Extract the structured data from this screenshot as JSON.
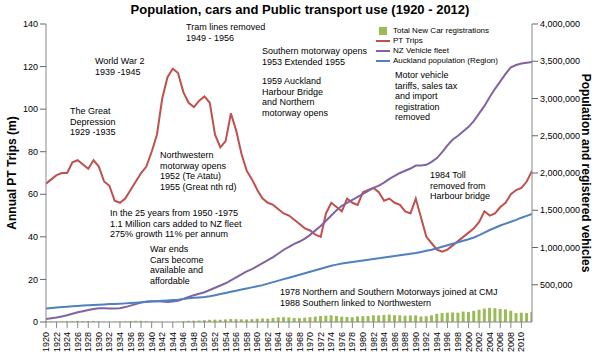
{
  "chart_data": {
    "type": "line",
    "title": "Population, cars and Public transport use (1920 - 2012)",
    "y_label": "Annual PT Trips (m)",
    "y2_label": "Population and registered vehicles",
    "x": [
      1920,
      1921,
      1922,
      1923,
      1924,
      1925,
      1926,
      1927,
      1928,
      1929,
      1930,
      1931,
      1932,
      1933,
      1934,
      1935,
      1936,
      1937,
      1938,
      1939,
      1940,
      1941,
      1942,
      1943,
      1944,
      1945,
      1946,
      1947,
      1948,
      1949,
      1950,
      1951,
      1952,
      1953,
      1954,
      1955,
      1956,
      1957,
      1958,
      1959,
      1960,
      1961,
      1962,
      1963,
      1964,
      1965,
      1966,
      1967,
      1968,
      1969,
      1970,
      1971,
      1972,
      1973,
      1974,
      1975,
      1976,
      1977,
      1978,
      1979,
      1980,
      1981,
      1982,
      1983,
      1984,
      1985,
      1986,
      1987,
      1988,
      1989,
      1990,
      1991,
      1992,
      1993,
      1994,
      1995,
      1996,
      1997,
      1998,
      1999,
      2000,
      2001,
      2002,
      2003,
      2004,
      2005,
      2006,
      2007,
      2008,
      2009,
      2010,
      2011,
      2012
    ],
    "xlim": [
      1920,
      2012
    ],
    "xticks": [
      1920,
      1922,
      1924,
      1926,
      1928,
      1930,
      1932,
      1934,
      1936,
      1938,
      1940,
      1942,
      1944,
      1946,
      1948,
      1950,
      1952,
      1954,
      1956,
      1958,
      1960,
      1962,
      1964,
      1966,
      1968,
      1970,
      1972,
      1974,
      1976,
      1978,
      1980,
      1982,
      1984,
      1986,
      1988,
      1990,
      1992,
      1994,
      1996,
      1998,
      2000,
      2002,
      2004,
      2006,
      2008,
      2010
    ],
    "ylim": [
      0,
      140
    ],
    "yticks": [
      0,
      20,
      40,
      60,
      80,
      100,
      120,
      140
    ],
    "y2lim": [
      0,
      4000000
    ],
    "y2ticks": [
      {
        "value": 500000,
        "label": "500,000"
      },
      {
        "value": 1000000,
        "label": "1,000,000"
      },
      {
        "value": 1500000,
        "label": "1,500,000"
      },
      {
        "value": 2000000,
        "label": "2,000,000"
      },
      {
        "value": 2500000,
        "label": "2,500,000"
      },
      {
        "value": 3000000,
        "label": "3,000,000"
      },
      {
        "value": 3500000,
        "label": "3,500,000"
      },
      {
        "value": 4000000,
        "label": "4,000,000"
      }
    ],
    "grid": false,
    "legend": "top right",
    "series": [
      {
        "name": "Total New Car registrations",
        "type": "bar",
        "color": "#9bbb59",
        "axis": "y2",
        "values": [
          10000,
          8000,
          8000,
          10000,
          12000,
          14000,
          14000,
          12000,
          13000,
          14000,
          10000,
          5000,
          4000,
          5000,
          8000,
          10000,
          14000,
          16000,
          16000,
          12000,
          8000,
          4000,
          2000,
          1000,
          1000,
          2000,
          10000,
          16000,
          18000,
          20000,
          25000,
          30000,
          32000,
          30000,
          35000,
          40000,
          38000,
          36000,
          34000,
          38000,
          45000,
          48000,
          45000,
          55000,
          62000,
          65000,
          62000,
          55000,
          52000,
          58000,
          65000,
          72000,
          80000,
          85000,
          90000,
          82000,
          72000,
          68000,
          65000,
          75000,
          78000,
          80000,
          90000,
          88000,
          95000,
          100000,
          92000,
          90000,
          85000,
          88000,
          90000,
          75000,
          78000,
          90000,
          110000,
          120000,
          125000,
          128000,
          125000,
          140000,
          135000,
          150000,
          165000,
          180000,
          190000,
          185000,
          175000,
          170000,
          150000,
          120000,
          125000,
          120000,
          135000
        ]
      },
      {
        "name": "PT Trips",
        "type": "line",
        "color": "#c0504d",
        "values": [
          65,
          67,
          69,
          70,
          70,
          75,
          76,
          74,
          72,
          76,
          73,
          66,
          64,
          57,
          56,
          58,
          62,
          66,
          70,
          73,
          80,
          88,
          105,
          115,
          119,
          117,
          108,
          103,
          101,
          104,
          106,
          103,
          88,
          82,
          85,
          98,
          90,
          79,
          71,
          67,
          62,
          58,
          56,
          55,
          53,
          51,
          50,
          48,
          46,
          44,
          43,
          41,
          40,
          51,
          56,
          54,
          52,
          58,
          56,
          55,
          61,
          62,
          63,
          61,
          57,
          58,
          56,
          55,
          52,
          51,
          58,
          49,
          40,
          37,
          34,
          33,
          34,
          36,
          38,
          40,
          42,
          44,
          47,
          52,
          50,
          51,
          54,
          56,
          60,
          62,
          63,
          66,
          71
        ]
      },
      {
        "name": "NZ Vehicle fleet",
        "type": "line",
        "color": "#8064a2",
        "axis": "y2",
        "values": [
          40000,
          50000,
          60000,
          75000,
          90000,
          110000,
          130000,
          145000,
          160000,
          175000,
          185000,
          185000,
          180000,
          180000,
          185000,
          200000,
          220000,
          240000,
          260000,
          275000,
          280000,
          280000,
          275000,
          270000,
          275000,
          285000,
          310000,
          335000,
          360000,
          380000,
          400000,
          430000,
          460000,
          490000,
          520000,
          560000,
          600000,
          640000,
          680000,
          710000,
          750000,
          790000,
          830000,
          870000,
          920000,
          970000,
          1010000,
          1050000,
          1080000,
          1120000,
          1170000,
          1230000,
          1290000,
          1360000,
          1430000,
          1500000,
          1560000,
          1600000,
          1640000,
          1680000,
          1720000,
          1760000,
          1800000,
          1830000,
          1870000,
          1920000,
          1960000,
          2000000,
          2030000,
          2060000,
          2100000,
          2100000,
          2110000,
          2150000,
          2200000,
          2280000,
          2370000,
          2450000,
          2500000,
          2560000,
          2620000,
          2700000,
          2800000,
          2900000,
          3020000,
          3130000,
          3230000,
          3330000,
          3420000,
          3450000,
          3470000,
          3480000,
          3490000
        ]
      },
      {
        "name": "Auckland population (Region)",
        "type": "line",
        "color": "#4f81bd",
        "axis": "y2",
        "values": [
          180000,
          188000,
          195000,
          200000,
          205000,
          210000,
          215000,
          220000,
          225000,
          228000,
          232000,
          236000,
          240000,
          243000,
          246000,
          250000,
          255000,
          260000,
          265000,
          270000,
          275000,
          280000,
          285000,
          290000,
          295000,
          300000,
          310000,
          318000,
          325000,
          330000,
          335000,
          345000,
          360000,
          375000,
          390000,
          405000,
          420000,
          435000,
          450000,
          465000,
          480000,
          495000,
          515000,
          535000,
          555000,
          575000,
          595000,
          615000,
          635000,
          655000,
          675000,
          695000,
          715000,
          735000,
          755000,
          770000,
          785000,
          795000,
          805000,
          815000,
          825000,
          835000,
          845000,
          855000,
          865000,
          875000,
          885000,
          895000,
          905000,
          915000,
          925000,
          940000,
          955000,
          970000,
          990000,
          1010000,
          1030000,
          1050000,
          1070000,
          1090000,
          1110000,
          1135000,
          1165000,
          1200000,
          1235000,
          1265000,
          1295000,
          1320000,
          1345000,
          1370000,
          1400000,
          1425000,
          1450000
        ]
      }
    ],
    "annotations": [
      "Tram lines removed\n1949 - 1956",
      "World War 2\n1939 -1945",
      "Southern motorway opens\n1953 Extended 1955",
      "The Great\nDepression\n1929 -1935",
      "Northwestern\nmotorway opens\n1952 (Te Atatu)\n1955 (Great nth rd)",
      "1959 Auckland\nHarbour Bridge\nand Northern\nmotorway opens",
      "In the 25 years from 1950 -1975\n1.1 Million cars added to NZ fleet\n275% growth 11% per annum",
      "Motor vehicle\ntariffs, sales tax\nand import\nregistration\nremoved",
      "War ends\nCars become\navailable and\naffordable",
      "1984 Toll\nremoved from\nHarbour bridge",
      "1978 Northern and Southern Motorways joined at CMJ\n1988 Southern linked to Northwestern"
    ]
  }
}
